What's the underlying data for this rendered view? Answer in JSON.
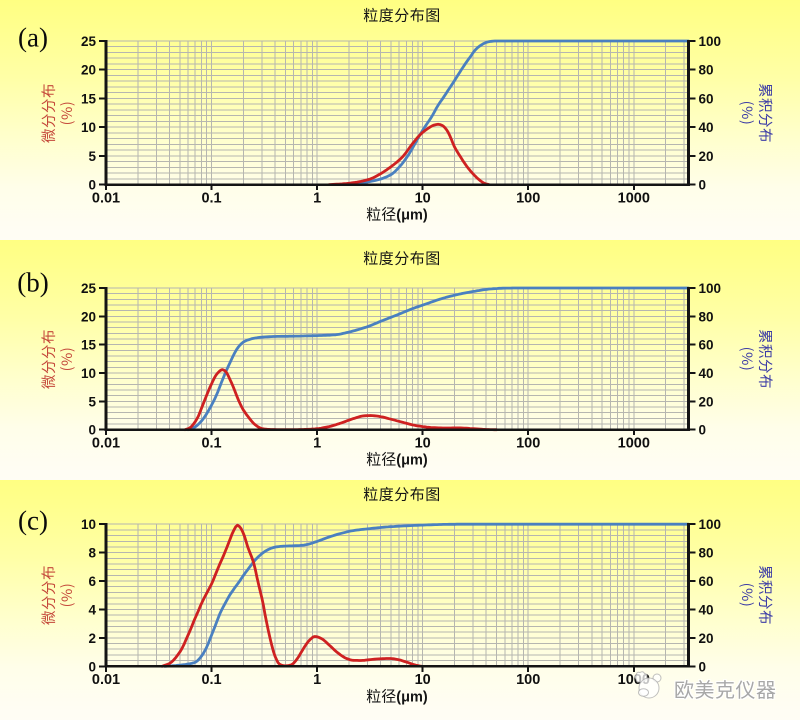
{
  "watermark": {
    "text": "欧美克仪器"
  },
  "chart_data": [
    {
      "panel_label": "(a)",
      "title": "粒度分布图",
      "x_label": "粒径",
      "x_unit": "(μm)",
      "type": "line",
      "x_scale": "log",
      "x_range": [
        0.01,
        3300
      ],
      "x_ticks": [
        0.01,
        0.1,
        1,
        10,
        100,
        1000
      ],
      "y_left": {
        "label": "微分分布",
        "unit": "(%)",
        "max": 25,
        "tick_step": 5,
        "ticks": [
          0,
          5,
          10,
          15,
          20,
          25
        ],
        "color": "#c4473a"
      },
      "y_right": {
        "label": "累积分布",
        "unit": "(%)",
        "max": 100,
        "tick_step": 20,
        "ticks": [
          0,
          20,
          40,
          60,
          80,
          100
        ],
        "color": "#3c3ca6"
      },
      "grid": true,
      "series": [
        {
          "name": "differential",
          "axis": "left",
          "color": "#ce2121",
          "points": [
            [
              1.3,
              0
            ],
            [
              1.8,
              0.15
            ],
            [
              2.5,
              0.5
            ],
            [
              3.2,
              1.0
            ],
            [
              4,
              1.9
            ],
            [
              5,
              3.1
            ],
            [
              6.5,
              4.9
            ],
            [
              8,
              7.1
            ],
            [
              9.6,
              8.8
            ],
            [
              11.5,
              9.9
            ],
            [
              12.8,
              10.35
            ],
            [
              14,
              10.5
            ],
            [
              15.3,
              10.3
            ],
            [
              16.8,
              9.6
            ],
            [
              18,
              8.6
            ],
            [
              20,
              6.6
            ],
            [
              22,
              5.3
            ],
            [
              25,
              3.7
            ],
            [
              28,
              2.5
            ],
            [
              31,
              1.6
            ],
            [
              34,
              0.9
            ],
            [
              37,
              0.4
            ],
            [
              40,
              0.1
            ],
            [
              42.5,
              0
            ]
          ]
        },
        {
          "name": "cumulative",
          "axis": "right",
          "color": "#4a80c0",
          "points": [
            [
              1.5,
              0
            ],
            [
              2,
              0.5
            ],
            [
              3,
              1.9
            ],
            [
              4,
              3.9
            ],
            [
              5,
              6.9
            ],
            [
              6,
              12.2
            ],
            [
              7,
              18.5
            ],
            [
              8,
              25.3
            ],
            [
              9,
              32
            ],
            [
              10,
              37.9
            ],
            [
              12,
              46.5
            ],
            [
              14,
              55.2
            ],
            [
              16,
              61.5
            ],
            [
              18,
              67.2
            ],
            [
              20,
              72.3
            ],
            [
              22.5,
              78.3
            ],
            [
              25,
              83.5
            ],
            [
              28,
              88.6
            ],
            [
              32,
              94.3
            ],
            [
              36,
              97.3
            ],
            [
              40,
              99
            ],
            [
              45,
              99.8
            ],
            [
              50,
              100
            ],
            [
              100,
              100
            ],
            [
              1000,
              100
            ],
            [
              3300,
              100
            ]
          ]
        }
      ]
    },
    {
      "panel_label": "(b)",
      "title": "粒度分布图",
      "x_label": "粒径",
      "x_unit": "(μm)",
      "type": "line",
      "x_scale": "log",
      "x_range": [
        0.01,
        3300
      ],
      "x_ticks": [
        0.01,
        0.1,
        1,
        10,
        100,
        1000
      ],
      "y_left": {
        "label": "微分分布",
        "unit": "(%)",
        "max": 25,
        "tick_step": 5,
        "ticks": [
          0,
          5,
          10,
          15,
          20,
          25
        ],
        "color": "#c4473a"
      },
      "y_right": {
        "label": "累积分布",
        "unit": "(%)",
        "max": 100,
        "tick_step": 20,
        "ticks": [
          0,
          20,
          40,
          60,
          80,
          100
        ],
        "color": "#3c3ca6"
      },
      "grid": true,
      "series": [
        {
          "name": "differential",
          "axis": "left",
          "color": "#ce2121",
          "points": [
            [
              0.056,
              0
            ],
            [
              0.062,
              0.3
            ],
            [
              0.068,
              1.1
            ],
            [
              0.075,
              2.4
            ],
            [
              0.08,
              3.7
            ],
            [
              0.09,
              6.1
            ],
            [
              0.1,
              8.1
            ],
            [
              0.11,
              9.6
            ],
            [
              0.118,
              10.25
            ],
            [
              0.126,
              10.6
            ],
            [
              0.135,
              10.35
            ],
            [
              0.15,
              8.8
            ],
            [
              0.165,
              7.0
            ],
            [
              0.18,
              5.2
            ],
            [
              0.2,
              3.5
            ],
            [
              0.22,
              2.4
            ],
            [
              0.26,
              0.85
            ],
            [
              0.3,
              0.2
            ],
            [
              0.35,
              0.05
            ],
            [
              0.45,
              0.02
            ],
            [
              0.6,
              0.02
            ],
            [
              0.8,
              0.06
            ],
            [
              1.0,
              0.18
            ],
            [
              1.3,
              0.55
            ],
            [
              1.7,
              1.2
            ],
            [
              2.2,
              1.95
            ],
            [
              2.8,
              2.45
            ],
            [
              3.2,
              2.5
            ],
            [
              4,
              2.3
            ],
            [
              5,
              1.85
            ],
            [
              6.5,
              1.3
            ],
            [
              8,
              0.85
            ],
            [
              10,
              0.55
            ],
            [
              13,
              0.35
            ],
            [
              17,
              0.3
            ],
            [
              22,
              0.32
            ],
            [
              28,
              0.22
            ],
            [
              34,
              0.12
            ],
            [
              42,
              0.03
            ],
            [
              50,
              0
            ]
          ]
        },
        {
          "name": "cumulative",
          "axis": "right",
          "color": "#4a80c0",
          "points": [
            [
              0.06,
              0
            ],
            [
              0.07,
              2
            ],
            [
              0.08,
              6
            ],
            [
              0.09,
              11.3
            ],
            [
              0.1,
              17.4
            ],
            [
              0.11,
              23.6
            ],
            [
              0.124,
              33.3
            ],
            [
              0.134,
              39.5
            ],
            [
              0.15,
              47.5
            ],
            [
              0.165,
              54
            ],
            [
              0.18,
              58.5
            ],
            [
              0.2,
              61.8
            ],
            [
              0.22,
              63.3
            ],
            [
              0.26,
              64.7
            ],
            [
              0.3,
              65.3
            ],
            [
              0.4,
              65.8
            ],
            [
              0.6,
              66
            ],
            [
              0.8,
              66.2
            ],
            [
              1.0,
              66.4
            ],
            [
              1.2,
              66.6
            ],
            [
              1.5,
              67
            ],
            [
              2,
              68.9
            ],
            [
              3,
              72.7
            ],
            [
              4,
              76.5
            ],
            [
              6,
              81.6
            ],
            [
              8,
              85.4
            ],
            [
              10,
              87.9
            ],
            [
              15,
              92.4
            ],
            [
              20,
              94.9
            ],
            [
              30,
              97.5
            ],
            [
              45,
              99.4
            ],
            [
              60,
              99.9
            ],
            [
              80,
              100
            ],
            [
              300,
              100
            ],
            [
              1000,
              100
            ],
            [
              3300,
              100
            ]
          ]
        }
      ]
    },
    {
      "panel_label": "(c)",
      "title": "粒度分布图",
      "x_label": "粒径",
      "x_unit": "(μm)",
      "type": "line",
      "x_scale": "log",
      "x_range": [
        0.01,
        3300
      ],
      "x_ticks": [
        0.01,
        0.1,
        1,
        10,
        100,
        1000
      ],
      "y_left": {
        "label": "微分分布",
        "unit": "(%)",
        "max": 10,
        "tick_step": 2,
        "ticks": [
          0,
          2,
          4,
          6,
          8,
          10
        ],
        "color": "#c4473a"
      },
      "y_right": {
        "label": "累积分布",
        "unit": "(%)",
        "max": 100,
        "tick_step": 20,
        "ticks": [
          0,
          20,
          40,
          60,
          80,
          100
        ],
        "color": "#3c3ca6"
      },
      "grid": true,
      "series": [
        {
          "name": "differential",
          "axis": "left",
          "color": "#ce2121",
          "points": [
            [
              0.034,
              0
            ],
            [
              0.04,
              0.2
            ],
            [
              0.05,
              1.0
            ],
            [
              0.06,
              2.2
            ],
            [
              0.07,
              3.4
            ],
            [
              0.085,
              4.8
            ],
            [
              0.1,
              5.8
            ],
            [
              0.115,
              6.9
            ],
            [
              0.13,
              7.8
            ],
            [
              0.15,
              8.95
            ],
            [
              0.163,
              9.6
            ],
            [
              0.176,
              9.93
            ],
            [
              0.19,
              9.7
            ],
            [
              0.205,
              9.15
            ],
            [
              0.22,
              8.4
            ],
            [
              0.25,
              7.3
            ],
            [
              0.28,
              5.7
            ],
            [
              0.3,
              4.8
            ],
            [
              0.33,
              3.2
            ],
            [
              0.36,
              1.9
            ],
            [
              0.4,
              0.7
            ],
            [
              0.44,
              0.15
            ],
            [
              0.5,
              0.03
            ],
            [
              0.57,
              0.1
            ],
            [
              0.65,
              0.55
            ],
            [
              0.75,
              1.3
            ],
            [
              0.85,
              1.85
            ],
            [
              0.95,
              2.1
            ],
            [
              1.1,
              1.95
            ],
            [
              1.3,
              1.5
            ],
            [
              1.6,
              0.9
            ],
            [
              1.9,
              0.55
            ],
            [
              2.2,
              0.42
            ],
            [
              2.6,
              0.41
            ],
            [
              3.2,
              0.47
            ],
            [
              4,
              0.53
            ],
            [
              4.9,
              0.55
            ],
            [
              6,
              0.45
            ],
            [
              7,
              0.3
            ],
            [
              8,
              0.15
            ],
            [
              9,
              0.05
            ],
            [
              9.8,
              0
            ]
          ]
        },
        {
          "name": "cumulative",
          "axis": "right",
          "color": "#4a80c0",
          "points": [
            [
              0.036,
              0
            ],
            [
              0.05,
              0.8
            ],
            [
              0.06,
              1.6
            ],
            [
              0.07,
              2.8
            ],
            [
              0.08,
              7
            ],
            [
              0.09,
              13.5
            ],
            [
              0.1,
              22
            ],
            [
              0.11,
              29.8
            ],
            [
              0.12,
              37
            ],
            [
              0.135,
              44.5
            ],
            [
              0.15,
              50.5
            ],
            [
              0.165,
              55
            ],
            [
              0.18,
              58.8
            ],
            [
              0.2,
              63.8
            ],
            [
              0.22,
              68
            ],
            [
              0.25,
              73.4
            ],
            [
              0.27,
              76.2
            ],
            [
              0.3,
              79.3
            ],
            [
              0.33,
              81.4
            ],
            [
              0.36,
              82.8
            ],
            [
              0.4,
              83.9
            ],
            [
              0.45,
              84.35
            ],
            [
              0.5,
              84.6
            ],
            [
              0.6,
              84.8
            ],
            [
              0.75,
              85.3
            ],
            [
              1.0,
              87.9
            ],
            [
              1.3,
              91
            ],
            [
              1.7,
              93.6
            ],
            [
              2.2,
              95.5
            ],
            [
              3,
              96.7
            ],
            [
              4.5,
              98
            ],
            [
              7,
              98.9
            ],
            [
              10,
              99.4
            ],
            [
              15,
              99.8
            ],
            [
              25,
              100
            ],
            [
              100,
              100
            ],
            [
              1000,
              100
            ],
            [
              3300,
              100
            ]
          ]
        }
      ]
    }
  ]
}
